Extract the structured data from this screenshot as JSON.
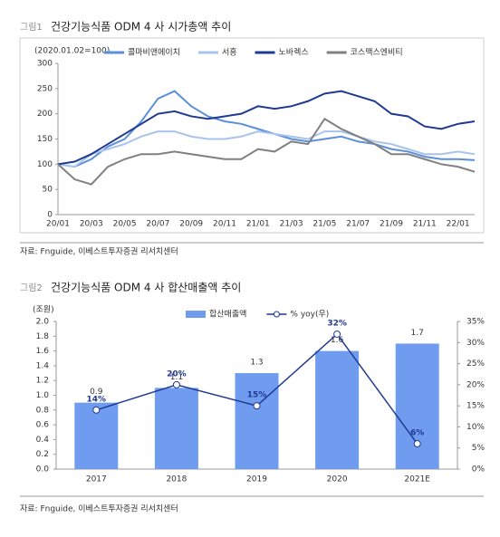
{
  "chart_data": [
    {
      "type": "line",
      "figure_label": "그림1",
      "title": "건강기능식품 ODM 4 사 시가총액 추이",
      "subtitle": "(2020.01.02=100)",
      "categories": [
        "20/01",
        null,
        "20/03",
        null,
        "20/05",
        null,
        "20/07",
        null,
        "20/09",
        null,
        "20/11",
        null,
        "21/01",
        null,
        "21/03",
        null,
        "21/05",
        null,
        "21/07",
        null,
        "21/09",
        null,
        "21/11",
        null,
        "22/01",
        null
      ],
      "series": [
        {
          "name": "콜마비앤에이치",
          "color": "#5b8fd9",
          "values": [
            100,
            95,
            110,
            135,
            150,
            185,
            230,
            245,
            215,
            195,
            185,
            180,
            170,
            160,
            150,
            145,
            150,
            155,
            145,
            140,
            130,
            125,
            115,
            110,
            110,
            108
          ]
        },
        {
          "name": "서흥",
          "color": "#a9c4ec",
          "values": [
            100,
            95,
            120,
            130,
            140,
            155,
            165,
            165,
            155,
            150,
            150,
            155,
            165,
            160,
            155,
            150,
            165,
            165,
            155,
            145,
            140,
            130,
            120,
            120,
            125,
            120
          ]
        },
        {
          "name": "노바렉스",
          "color": "#1f3a93",
          "values": [
            100,
            105,
            120,
            140,
            160,
            180,
            200,
            205,
            195,
            190,
            195,
            200,
            215,
            210,
            215,
            225,
            240,
            245,
            235,
            225,
            200,
            195,
            175,
            170,
            180,
            185
          ]
        },
        {
          "name": "코스맥스엔비티",
          "color": "#808080",
          "values": [
            100,
            70,
            60,
            95,
            110,
            120,
            120,
            125,
            120,
            115,
            110,
            110,
            130,
            125,
            145,
            140,
            190,
            170,
            155,
            140,
            120,
            120,
            110,
            100,
            95,
            85
          ]
        }
      ],
      "ylim": [
        0,
        300
      ],
      "yticks": [
        0,
        50,
        100,
        150,
        200,
        250,
        300
      ],
      "source": "자료: Fnguide, 이베스트투자증권 리서치센터"
    },
    {
      "type": "bar",
      "figure_label": "그림2",
      "title": "건강기능식품 ODM 4 사 합산매출액 추이",
      "y_label": "(조원)",
      "categories": [
        "2017",
        "2018",
        "2019",
        "2020",
        "2021E"
      ],
      "series": [
        {
          "name": "합산매출액",
          "type": "bar",
          "color": "#6f9cee",
          "values": [
            0.9,
            1.1,
            1.3,
            1.6,
            1.7
          ]
        },
        {
          "name": "% yoy(우)",
          "type": "line",
          "axis": "y2",
          "color": "#1f3a93",
          "values": [
            14,
            20,
            15,
            32,
            6
          ],
          "value_labels": [
            "14%",
            "20%",
            "15%",
            "32%",
            "6%"
          ]
        }
      ],
      "ylim": [
        0,
        2
      ],
      "yticks": [
        {
          "value": 0,
          "label": "0.0"
        },
        {
          "value": 0.2,
          "label": "0.2"
        },
        {
          "value": 0.4,
          "label": "0.4"
        },
        {
          "value": 0.6,
          "label": "0.6"
        },
        {
          "value": 0.8,
          "label": "0.8"
        },
        {
          "value": 1,
          "label": "1.0"
        },
        {
          "value": 1.2,
          "label": "1.2"
        },
        {
          "value": 1.4,
          "label": "1.4"
        },
        {
          "value": 1.6,
          "label": "1.6"
        },
        {
          "value": 1.8,
          "label": "1.8"
        },
        {
          "value": 2,
          "label": "2.0"
        }
      ],
      "y2lim": [
        0,
        35
      ],
      "y2ticks": [
        {
          "value": 0,
          "label": "0%"
        },
        {
          "value": 5,
          "label": "5%"
        },
        {
          "value": 10,
          "label": "10%"
        },
        {
          "value": 15,
          "label": "15%"
        },
        {
          "value": 20,
          "label": "20%"
        },
        {
          "value": 25,
          "label": "25%"
        },
        {
          "value": 30,
          "label": "30%"
        },
        {
          "value": 35,
          "label": "35%"
        }
      ],
      "source": "자료: Fnguide, 이베스트투자증권 리서치센터"
    }
  ]
}
